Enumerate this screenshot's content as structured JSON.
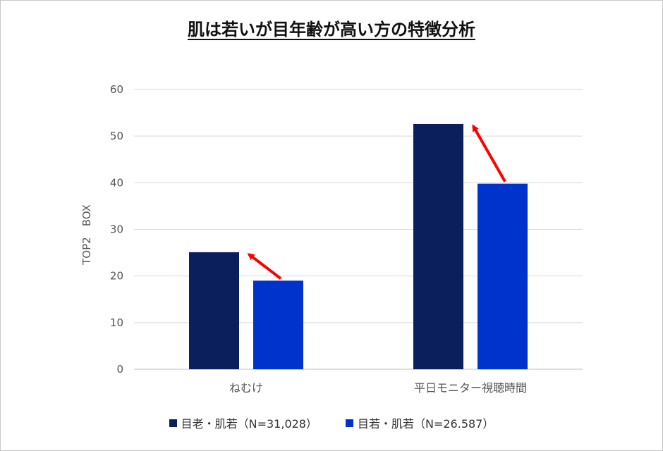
{
  "chart_data": {
    "type": "bar",
    "title": "肌は若いが目年齢が高い方の特徴分析",
    "ylabel": "TOP2　BOX",
    "xlabel": "",
    "ylim": [
      0,
      60
    ],
    "yticks": [
      0,
      10,
      20,
      30,
      40,
      50,
      60
    ],
    "grid": true,
    "legend_position": "bottom",
    "categories": [
      "ねむけ",
      "平日モニター視聴時間"
    ],
    "series": [
      {
        "name": "目老・肌若（N=31,028）",
        "color": "#0b1f5c",
        "values": [
          25.1,
          52.6
        ]
      },
      {
        "name": "目若・肌若（N=26.587）",
        "color": "#0033cc",
        "values": [
          19.0,
          39.8
        ]
      }
    ],
    "annotations": [
      {
        "type": "arrow",
        "color": "#ff0000",
        "category": "ねむけ",
        "from_series": 1,
        "to_series": 0
      },
      {
        "type": "arrow",
        "color": "#ff0000",
        "category": "平日モニター視聴時間",
        "from_series": 1,
        "to_series": 0
      }
    ]
  }
}
